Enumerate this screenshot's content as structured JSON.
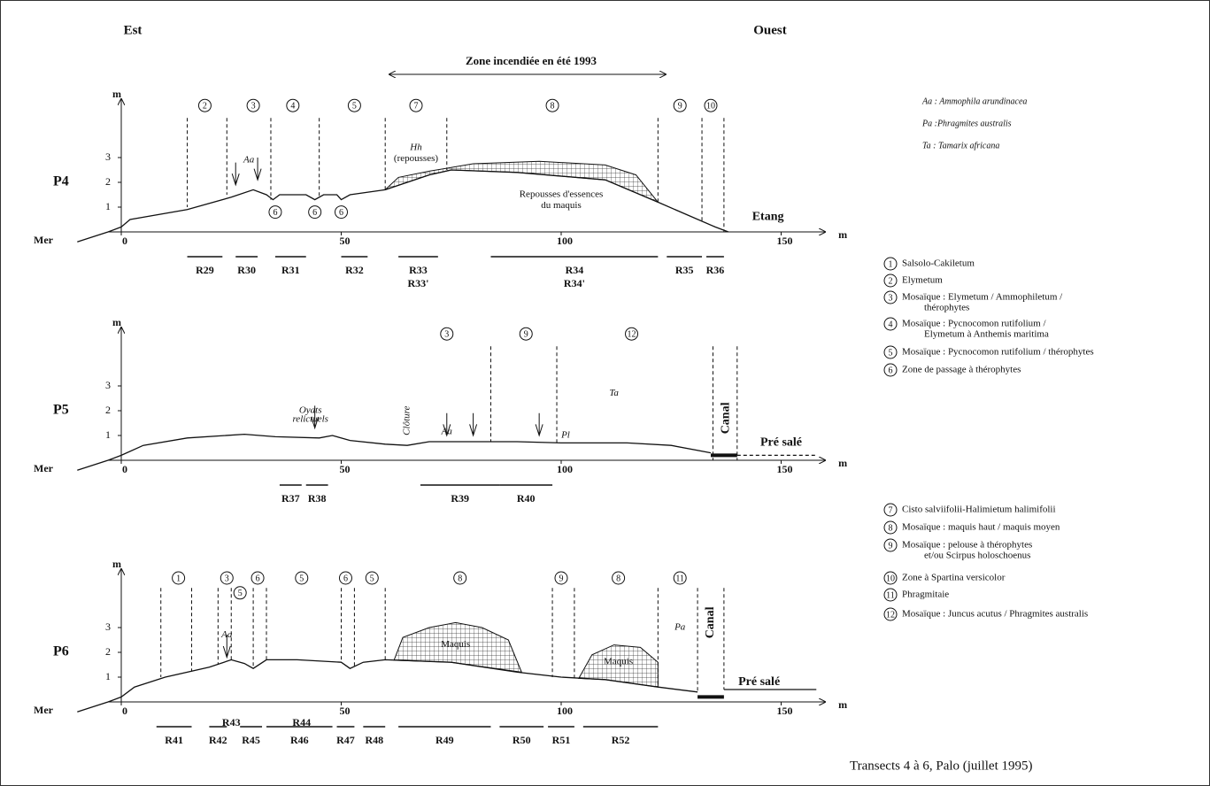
{
  "header": {
    "east": "Est",
    "west": "Ouest",
    "burn_zone": "Zone incendiée en été 1993"
  },
  "species_legend": [
    "Aa : Ammophila arundinacea",
    "Pa :Phragmites australis",
    "Ta : Tamarix africana"
  ],
  "community_legend": [
    {
      "num": "1",
      "lines": [
        "Salsolo-Cakiletum"
      ]
    },
    {
      "num": "2",
      "lines": [
        "Elymetum"
      ]
    },
    {
      "num": "3",
      "lines": [
        "Mosaïque : Elymetum / Ammophiletum /",
        "thérophytes"
      ]
    },
    {
      "num": "4",
      "lines": [
        "Mosaïque : Pycnocomon rutifolium /",
        "Elymetum à Anthemis maritima"
      ]
    },
    {
      "num": "5",
      "lines": [
        "Mosaïque : Pycnocomon rutifolium / thérophytes"
      ]
    },
    {
      "num": "6",
      "lines": [
        "Zone de passage à thérophytes"
      ]
    },
    {
      "num": "7",
      "lines": [
        "Cisto salviifolii-Halimietum halimifolii"
      ]
    },
    {
      "num": "8",
      "lines": [
        "Mosaïque : maquis haut / maquis moyen"
      ]
    },
    {
      "num": "9",
      "lines": [
        "Mosaïque : pelouse à thérophytes",
        "et/ou Scirpus holoschoenus"
      ]
    },
    {
      "num": "10",
      "lines": [
        "Zone à Spartina versicolor"
      ]
    },
    {
      "num": "11",
      "lines": [
        "Phragmitaie"
      ]
    },
    {
      "num": "12",
      "lines": [
        "Mosaïque : Juncus acutus / Phragmites australis"
      ]
    }
  ],
  "panels": [
    {
      "label": "P4",
      "y_unit": "m",
      "x_unit": "m",
      "sea": "Mer",
      "yticks": [
        1,
        2,
        3
      ],
      "xticks": [
        0,
        50,
        100,
        150
      ],
      "zones": [
        "2",
        "3",
        "4",
        "5",
        "7",
        "8",
        "9",
        "10"
      ],
      "markers": [
        "6",
        "6",
        "6"
      ],
      "annotations": [
        "Aa",
        "Hh",
        "(repousses)",
        "Repousses d'essences",
        "du maquis",
        "Etang"
      ],
      "releves": [
        [
          "R29"
        ],
        [
          "R30"
        ],
        [
          "R31"
        ],
        [
          "R32"
        ],
        [
          "R33",
          "R33'"
        ],
        [
          "R34",
          "R34'"
        ],
        [
          "R35"
        ],
        [
          "R36"
        ]
      ]
    },
    {
      "label": "P5",
      "y_unit": "m",
      "x_unit": "m",
      "sea": "Mer",
      "yticks": [
        1,
        2,
        3
      ],
      "xticks": [
        0,
        50,
        100,
        150
      ],
      "zones": [
        "3",
        "9",
        "12"
      ],
      "markers": [],
      "annotations": [
        "Oyats",
        "relictuels",
        "Clôture",
        "Aa",
        "Pl",
        "Ta",
        "Canal",
        "Pré salé"
      ],
      "releves": [
        [
          "R37"
        ],
        [
          "R38"
        ],
        [
          "R39"
        ],
        [
          "R40"
        ]
      ]
    },
    {
      "label": "P6",
      "y_unit": "m",
      "x_unit": "m",
      "sea": "Mer",
      "yticks": [
        1,
        2,
        3
      ],
      "xticks": [
        0,
        50,
        100,
        150
      ],
      "zones": [
        "1",
        "3",
        "5",
        "6",
        "5",
        "6",
        "5",
        "8",
        "9",
        "8",
        "11"
      ],
      "markers": [],
      "annotations": [
        "Aa",
        "Maquis",
        "Maquis",
        "Pa",
        "Canal",
        "Pré salé"
      ],
      "releves": [
        [
          "R41"
        ],
        [
          "R42"
        ],
        [
          "R43"
        ],
        [
          "R45"
        ],
        [
          "R44"
        ],
        [
          "R46"
        ],
        [
          "R47"
        ],
        [
          "R48"
        ],
        [
          "R49"
        ],
        [
          "R50"
        ],
        [
          "R51"
        ],
        [
          "R52"
        ]
      ]
    }
  ],
  "caption": "Transects 4 à 6, Palo (juillet 1995)"
}
